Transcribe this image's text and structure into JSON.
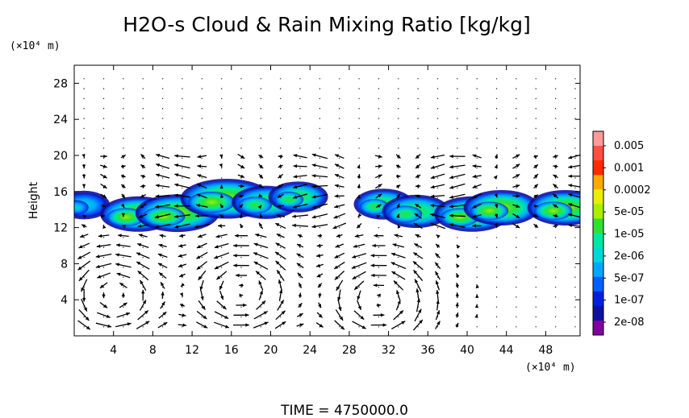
{
  "chart_data": {
    "type": "heatmap",
    "title": "H2O-s Cloud & Rain Mixing Ratio [kg/kg]",
    "xlabel": "",
    "ylabel": "Height",
    "x_unit": "(×10⁴ m)",
    "y_unit": "(×10⁴ m)",
    "xlim": [
      0,
      51.5
    ],
    "ylim": [
      0,
      30
    ],
    "x_ticks": [
      4,
      8,
      12,
      16,
      20,
      24,
      28,
      32,
      36,
      40,
      44,
      48
    ],
    "y_ticks": [
      4,
      8,
      12,
      16,
      20,
      24,
      28
    ],
    "grid": false,
    "colorbar": {
      "labels": [
        "0.005",
        "0.001",
        "0.0002",
        "5e-05",
        "1e-05",
        "2e-06",
        "5e-07",
        "1e-07",
        "2e-08"
      ],
      "colors": [
        "#ff9a9a",
        "#ff5040",
        "#ff2a00",
        "#ffaa00",
        "#e8f000",
        "#a8f000",
        "#30e030",
        "#00e8a0",
        "#00d8d8",
        "#00a8ff",
        "#0060ff",
        "#0020e0",
        "#1010a0",
        "#8000a0"
      ]
    },
    "cloud_regions": [
      {
        "x": 1,
        "y": 14.5,
        "intensity": 2
      },
      {
        "x": 6.5,
        "y": 13.5,
        "intensity": 5
      },
      {
        "x": 10.5,
        "y": 13.6,
        "intensity": 6
      },
      {
        "x": 15.5,
        "y": 15.2,
        "intensity": 7
      },
      {
        "x": 19.5,
        "y": 14.8,
        "intensity": 4
      },
      {
        "x": 22.8,
        "y": 15.4,
        "intensity": 3
      },
      {
        "x": 31.5,
        "y": 14.6,
        "intensity": 3
      },
      {
        "x": 34.8,
        "y": 13.8,
        "intensity": 4
      },
      {
        "x": 40.5,
        "y": 13.5,
        "intensity": 5
      },
      {
        "x": 43.5,
        "y": 14.2,
        "intensity": 5
      },
      {
        "x": 50,
        "y": 14.2,
        "intensity": 5
      }
    ],
    "wind_vectors": "circulation cells centered near x=4, 17, 31 at height ~4; upper-level flow near height 14-20"
  },
  "footer": "TIME  =  4750000.0"
}
